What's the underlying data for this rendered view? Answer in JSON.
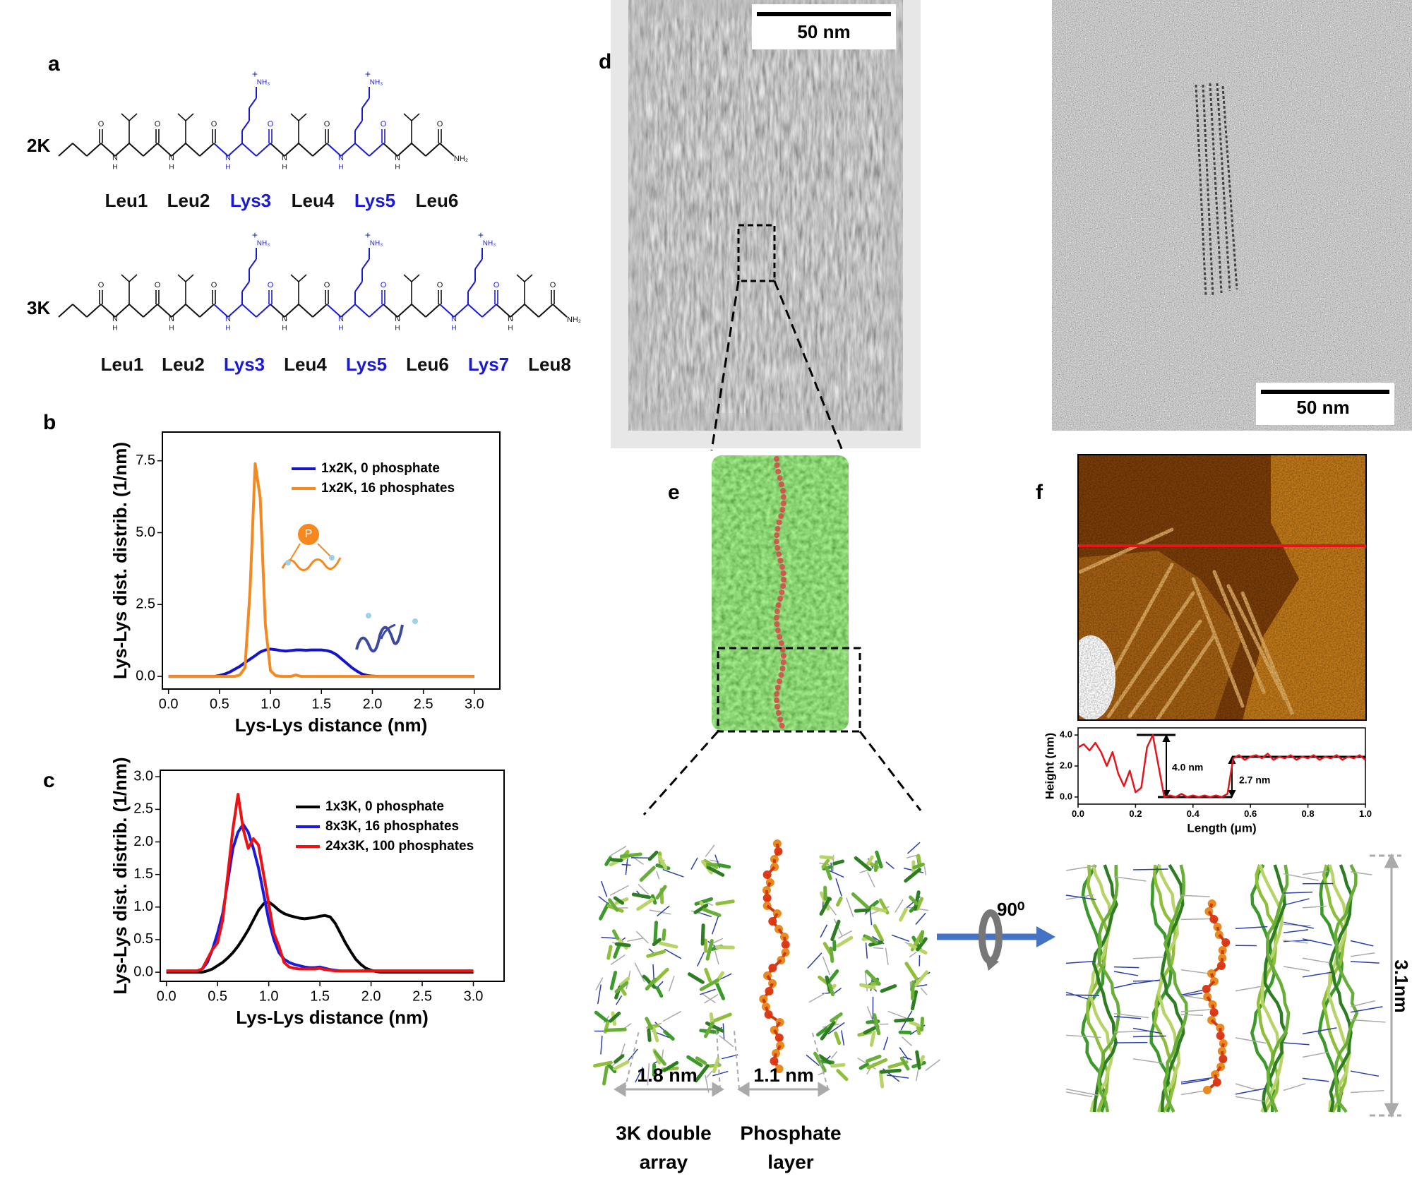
{
  "panels": [
    "a",
    "b",
    "c",
    "d",
    "e",
    "f"
  ],
  "structures": [
    {
      "name": "2K",
      "residues": [
        {
          "label": "Leu1",
          "color": "#111111"
        },
        {
          "label": "Leu2",
          "color": "#111111"
        },
        {
          "label": "Lys3",
          "color": "#1a1ad6"
        },
        {
          "label": "Leu4",
          "color": "#111111"
        },
        {
          "label": "Lys5",
          "color": "#1a1ad6"
        },
        {
          "label": "Leu6",
          "color": "#111111"
        }
      ]
    },
    {
      "name": "3K",
      "residues": [
        {
          "label": "Leu1",
          "color": "#111111"
        },
        {
          "label": "Leu2",
          "color": "#111111"
        },
        {
          "label": "Lys3",
          "color": "#1a1ad6"
        },
        {
          "label": "Leu4",
          "color": "#111111"
        },
        {
          "label": "Lys5",
          "color": "#1a1ad6"
        },
        {
          "label": "Leu6",
          "color": "#111111"
        },
        {
          "label": "Lys7",
          "color": "#1a1ad6"
        },
        {
          "label": "Leu8",
          "color": "#111111"
        }
      ]
    }
  ],
  "chem_labels": {
    "n": "N",
    "h": "H",
    "o": "O",
    "amide": "NH₂",
    "amine": "NH₃",
    "charge": "+"
  },
  "tem": {
    "scale_bar_left": "50 nm",
    "scale_bar_right": "50 nm"
  },
  "model": {
    "rotation": "90⁰",
    "height": "3.1nm",
    "spacings": [
      "1.8 nm",
      "1.1 nm"
    ],
    "layers": [
      [
        "3K double",
        "array"
      ],
      [
        "Phosphate",
        "layer"
      ]
    ]
  },
  "chart_data": [
    {
      "type": "line",
      "xlabel": "Lys-Lys distance (nm)",
      "ylabel": "Lys-Lys dist. distrib. (1/nm)",
      "legend": "upper right",
      "annotations": [
        "P"
      ],
      "xlim": [
        -0.06,
        3.25
      ],
      "ylim": [
        -0.44,
        8.5
      ],
      "xticks": [
        {
          "value": 0,
          "label": "0.0"
        },
        {
          "value": 0.5,
          "label": "0.5"
        },
        {
          "value": 1,
          "label": "1.0"
        },
        {
          "value": 1.5,
          "label": "1.5"
        },
        {
          "value": 2,
          "label": "2.0"
        },
        {
          "value": 2.5,
          "label": "2.5"
        },
        {
          "value": 3,
          "label": "3.0"
        }
      ],
      "yticks": [
        {
          "value": 0,
          "label": "0.0"
        },
        {
          "value": 2.5,
          "label": "2.5"
        },
        {
          "value": 5,
          "label": "5.0"
        },
        {
          "value": 7.5,
          "label": "7.5"
        }
      ],
      "x": [
        0,
        0.05,
        0.1,
        0.15,
        0.2,
        0.25,
        0.3,
        0.35,
        0.4,
        0.45,
        0.5,
        0.55,
        0.6,
        0.65,
        0.7,
        0.75,
        0.8,
        0.85,
        0.9,
        0.95,
        1,
        1.05,
        1.1,
        1.15,
        1.2,
        1.25,
        1.3,
        1.35,
        1.4,
        1.45,
        1.5,
        1.55,
        1.6,
        1.65,
        1.7,
        1.75,
        1.8,
        1.85,
        1.9,
        1.95,
        2,
        2.05,
        2.1,
        2.15,
        2.2,
        2.25,
        2.3,
        2.35,
        2.4,
        2.45,
        2.5,
        2.55,
        2.6,
        2.65,
        2.7,
        2.75,
        2.8,
        2.85,
        2.9,
        2.95,
        3
      ],
      "series": [
        {
          "name": "1x2K, 0 phosphate",
          "color": "#1414cc",
          "values": [
            0,
            0,
            0,
            0,
            0,
            0,
            0,
            0,
            0,
            0,
            0.03,
            0.08,
            0.15,
            0.25,
            0.35,
            0.48,
            0.6,
            0.72,
            0.85,
            0.92,
            0.95,
            0.93,
            0.9,
            0.88,
            0.9,
            0.92,
            0.92,
            0.91,
            0.92,
            0.92,
            0.92,
            0.9,
            0.85,
            0.75,
            0.6,
            0.45,
            0.3,
            0.18,
            0.08,
            0.03,
            0.01,
            0,
            0,
            0,
            0,
            0,
            0,
            0,
            0,
            0,
            0,
            0,
            0,
            0,
            0,
            0,
            0,
            0,
            0,
            0,
            0
          ]
        },
        {
          "name": "1x2K, 16 phosphates",
          "color": "#f5891f",
          "values": [
            0,
            0,
            0,
            0,
            0,
            0,
            0,
            0,
            0,
            0,
            0,
            0,
            0,
            0,
            0.05,
            0.3,
            3.0,
            7.4,
            6.2,
            1.8,
            0.2,
            0.03,
            0,
            0,
            0,
            0.05,
            0,
            0,
            0,
            0,
            0,
            0,
            0,
            0,
            0,
            0,
            0,
            0,
            0,
            0,
            0,
            0,
            0,
            0,
            0,
            0,
            0,
            0,
            0,
            0,
            0,
            0,
            0,
            0,
            0,
            0,
            0,
            0,
            0,
            0,
            0
          ]
        }
      ]
    },
    {
      "type": "line",
      "xlabel": "Lys-Lys distance (nm)",
      "ylabel": "Lys-Lys dist. distrib. (1/nm)",
      "legend": "upper right",
      "xlim": [
        -0.06,
        3.3
      ],
      "ylim": [
        -0.14,
        3.1
      ],
      "xticks": [
        {
          "value": 0,
          "label": "0.0"
        },
        {
          "value": 0.5,
          "label": "0.5"
        },
        {
          "value": 1,
          "label": "1.0"
        },
        {
          "value": 1.5,
          "label": "1.5"
        },
        {
          "value": 2,
          "label": "2.0"
        },
        {
          "value": 2.5,
          "label": "2.5"
        },
        {
          "value": 3,
          "label": "3.0"
        }
      ],
      "yticks": [
        {
          "value": 0,
          "label": "0.0"
        },
        {
          "value": 0.5,
          "label": "0.5"
        },
        {
          "value": 1,
          "label": "1.0"
        },
        {
          "value": 1.5,
          "label": "1.5"
        },
        {
          "value": 2,
          "label": "2.0"
        },
        {
          "value": 2.5,
          "label": "2.5"
        },
        {
          "value": 3,
          "label": "3.0"
        }
      ],
      "x": [
        0,
        0.05,
        0.1,
        0.15,
        0.2,
        0.25,
        0.3,
        0.35,
        0.4,
        0.45,
        0.5,
        0.55,
        0.6,
        0.65,
        0.7,
        0.75,
        0.8,
        0.85,
        0.9,
        0.95,
        1,
        1.05,
        1.1,
        1.15,
        1.2,
        1.25,
        1.3,
        1.35,
        1.4,
        1.45,
        1.5,
        1.55,
        1.6,
        1.65,
        1.7,
        1.75,
        1.8,
        1.85,
        1.9,
        1.95,
        2,
        2.05,
        2.1,
        2.15,
        2.2,
        2.25,
        2.3,
        2.35,
        2.4,
        2.45,
        2.5,
        2.55,
        2.6,
        2.65,
        2.7,
        2.75,
        2.8,
        2.85,
        2.9,
        2.95,
        3
      ],
      "series": [
        {
          "name": "1x3K, 0 phosphate",
          "color": "#000000",
          "values": [
            0,
            0,
            0,
            0,
            0,
            0,
            0,
            0,
            0.02,
            0.05,
            0.1,
            0.15,
            0.22,
            0.3,
            0.4,
            0.52,
            0.65,
            0.8,
            0.95,
            1.05,
            1.08,
            1.02,
            0.95,
            0.9,
            0.87,
            0.85,
            0.83,
            0.82,
            0.83,
            0.84,
            0.86,
            0.87,
            0.85,
            0.75,
            0.6,
            0.45,
            0.32,
            0.2,
            0.12,
            0.06,
            0.03,
            0.01,
            0,
            0,
            0,
            0,
            0,
            0,
            0,
            0,
            0,
            0,
            0,
            0,
            0,
            0,
            0,
            0,
            0,
            0,
            0
          ]
        },
        {
          "name": "8x3K, 16 phosphates",
          "color": "#1a1ae0",
          "values": [
            0.02,
            0.02,
            0.02,
            0.02,
            0.02,
            0.02,
            0.02,
            0.05,
            0.15,
            0.35,
            0.6,
            0.9,
            1.4,
            1.9,
            2.15,
            2.27,
            2.15,
            1.9,
            1.6,
            1.2,
            0.8,
            0.5,
            0.3,
            0.2,
            0.15,
            0.12,
            0.1,
            0.08,
            0.07,
            0.07,
            0.08,
            0.06,
            0.04,
            0.03,
            0.02,
            0.02,
            0.02,
            0.02,
            0.02,
            0.02,
            0.02,
            0.02,
            0.02,
            0.02,
            0.02,
            0.02,
            0.02,
            0.02,
            0.02,
            0.02,
            0.02,
            0.02,
            0.02,
            0.02,
            0.02,
            0.02,
            0.02,
            0.02,
            0.02,
            0.02,
            0.02
          ]
        },
        {
          "name": "24x3K, 100 phosphates",
          "color": "#ee1111",
          "values": [
            0.02,
            0.02,
            0.02,
            0.02,
            0.02,
            0.02,
            0.02,
            0.05,
            0.2,
            0.35,
            0.45,
            0.8,
            1.5,
            2.2,
            2.73,
            2.2,
            1.9,
            2.05,
            1.95,
            1.5,
            1.05,
            0.6,
            0.4,
            0.15,
            0.08,
            0.06,
            0.05,
            0.05,
            0.05,
            0.05,
            0.06,
            0.04,
            0.03,
            0.02,
            0.02,
            0.02,
            0.02,
            0.02,
            0.02,
            0.02,
            0.02,
            0.02,
            0.02,
            0.02,
            0.02,
            0.02,
            0.02,
            0.02,
            0.02,
            0.02,
            0.02,
            0.02,
            0.02,
            0.02,
            0.02,
            0.02,
            0.02,
            0.02,
            0.02,
            0.02,
            0.02
          ]
        }
      ]
    },
    {
      "type": "line",
      "xlabel": "Length (μm)",
      "ylabel": "Height (nm)",
      "annotations": [
        "4.0 nm",
        "2.7 nm"
      ],
      "xlim": [
        0,
        1
      ],
      "ylim": [
        -0.46,
        4.46
      ],
      "xticks": [
        {
          "value": 0,
          "label": "0.0"
        },
        {
          "value": 0.2,
          "label": "0.2"
        },
        {
          "value": 0.4,
          "label": "0.4"
        },
        {
          "value": 0.6,
          "label": "0.6"
        },
        {
          "value": 0.8,
          "label": "0.8"
        },
        {
          "value": 1,
          "label": "1.0"
        }
      ],
      "yticks": [
        {
          "value": 0,
          "label": "0.0"
        },
        {
          "value": 2,
          "label": "2.0"
        },
        {
          "value": 4,
          "label": "4.0"
        }
      ],
      "x": [
        0,
        0.02,
        0.04,
        0.06,
        0.08,
        0.1,
        0.12,
        0.14,
        0.16,
        0.18,
        0.2,
        0.22,
        0.24,
        0.26,
        0.28,
        0.3,
        0.32,
        0.34,
        0.36,
        0.38,
        0.4,
        0.42,
        0.44,
        0.46,
        0.48,
        0.5,
        0.52,
        0.54,
        0.56,
        0.58,
        0.6,
        0.62,
        0.64,
        0.66,
        0.68,
        0.7,
        0.72,
        0.74,
        0.76,
        0.78,
        0.8,
        0.82,
        0.84,
        0.86,
        0.88,
        0.9,
        0.92,
        0.94,
        0.96,
        0.98,
        1
      ],
      "series": [
        {
          "color": "#e8141c",
          "values": [
            3.2,
            3.4,
            3.0,
            3.5,
            2.9,
            2.0,
            2.9,
            1.5,
            0.7,
            1.7,
            0.3,
            0.6,
            3.2,
            4.0,
            2.0,
            0.0,
            0.1,
            0.0,
            0.2,
            0.0,
            0.1,
            0.0,
            0.1,
            0.0,
            0.1,
            0.0,
            0.2,
            2.5,
            2.7,
            2.4,
            2.6,
            2.7,
            2.5,
            2.8,
            2.4,
            2.6,
            2.5,
            2.7,
            2.4,
            2.6,
            2.5,
            2.7,
            2.4,
            2.6,
            2.5,
            2.7,
            2.4,
            2.6,
            2.5,
            2.7,
            2.4
          ]
        }
      ]
    }
  ]
}
